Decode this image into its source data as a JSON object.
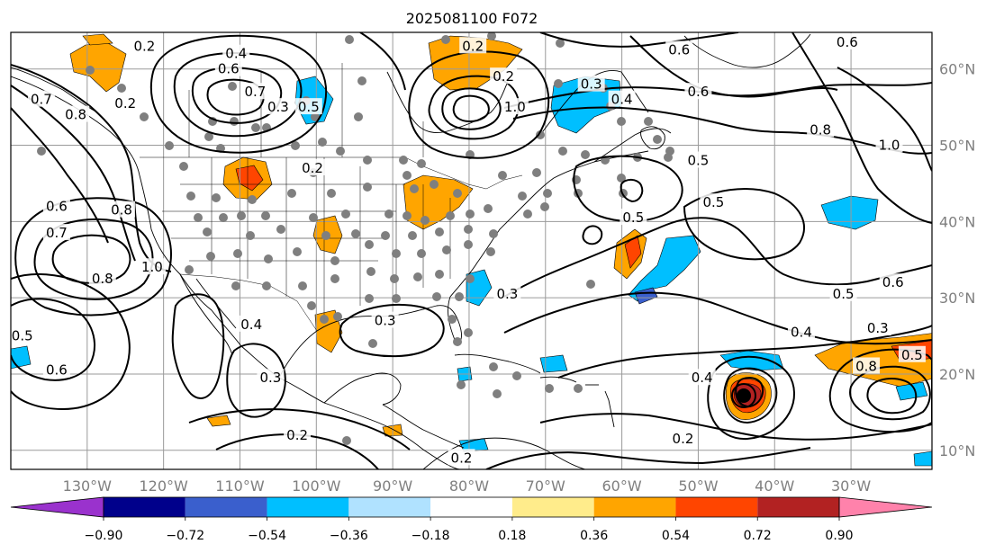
{
  "title": "2025081100 F072",
  "lon_labels": [
    "130°W",
    "120°W",
    "110°W",
    "100°W",
    "90°W",
    "80°W",
    "70°W",
    "60°W",
    "50°W",
    "40°W",
    "30°W"
  ],
  "lat_labels": [
    "60°N",
    "50°N",
    "40°N",
    "30°N",
    "20°N",
    "10°N"
  ],
  "colorbar": {
    "tick_labels": [
      "−0.90",
      "−0.72",
      "−0.54",
      "−0.36",
      "−0.18",
      "0.18",
      "0.36",
      "0.54",
      "0.72",
      "0.90"
    ],
    "colors": [
      "#9a32cd",
      "#00008b",
      "#3a5fcd",
      "#00bfff",
      "#b0e2ff",
      "#ffffff",
      "#ffec8b",
      "#ffa500",
      "#ff4500",
      "#b22222",
      "#ff82ab"
    ]
  },
  "contour_labels": [
    {
      "text": "0.2",
      "lon": -122.5,
      "lat": 63.0
    },
    {
      "text": "0.4",
      "lon": -110.5,
      "lat": 62.0
    },
    {
      "text": "0.6",
      "lon": -111.5,
      "lat": 60.0
    },
    {
      "text": "0.7",
      "lon": -108.0,
      "lat": 57.0
    },
    {
      "text": "0.3",
      "lon": -105.0,
      "lat": 55.0
    },
    {
      "text": "0.5",
      "lon": -101.0,
      "lat": 55.0
    },
    {
      "text": "0.7",
      "lon": -136.0,
      "lat": 56.0
    },
    {
      "text": "0.8",
      "lon": -131.5,
      "lat": 54.0
    },
    {
      "text": "0.2",
      "lon": -125.0,
      "lat": 55.5
    },
    {
      "text": "0.8",
      "lon": -125.5,
      "lat": 41.5
    },
    {
      "text": "0.6",
      "lon": -134.0,
      "lat": 42.0
    },
    {
      "text": "0.7",
      "lon": -134.0,
      "lat": 38.5
    },
    {
      "text": "0.8",
      "lon": -128.0,
      "lat": 32.5
    },
    {
      "text": "1.0",
      "lon": -121.5,
      "lat": 34.0
    },
    {
      "text": "0.2",
      "lon": -100.5,
      "lat": 47.0
    },
    {
      "text": "0.2",
      "lon": -79.5,
      "lat": 63.0
    },
    {
      "text": "0.2",
      "lon": -75.5,
      "lat": 59.0
    },
    {
      "text": "1.0",
      "lon": -74.0,
      "lat": 55.0
    },
    {
      "text": "0.3",
      "lon": -64.0,
      "lat": 58.0
    },
    {
      "text": "0.4",
      "lon": -60.0,
      "lat": 56.0
    },
    {
      "text": "0.6",
      "lon": -50.0,
      "lat": 57.0
    },
    {
      "text": "0.6",
      "lon": -52.5,
      "lat": 62.5
    },
    {
      "text": "0.6",
      "lon": -30.5,
      "lat": 63.5
    },
    {
      "text": "0.8",
      "lon": -34.0,
      "lat": 52.0
    },
    {
      "text": "1.0",
      "lon": -25.0,
      "lat": 50.0
    },
    {
      "text": "0.5",
      "lon": -50.0,
      "lat": 48.0
    },
    {
      "text": "0.5",
      "lon": -48.0,
      "lat": 42.5
    },
    {
      "text": "0.5",
      "lon": -58.5,
      "lat": 40.5
    },
    {
      "text": "0.5",
      "lon": -31.0,
      "lat": 30.5
    },
    {
      "text": "0.6",
      "lon": -24.5,
      "lat": 32.0
    },
    {
      "text": "0.3",
      "lon": -75.0,
      "lat": 30.5
    },
    {
      "text": "0.3",
      "lon": -91.0,
      "lat": 27.0
    },
    {
      "text": "0.4",
      "lon": -108.5,
      "lat": 26.5
    },
    {
      "text": "0.3",
      "lon": -106.0,
      "lat": 19.5
    },
    {
      "text": "0.5",
      "lon": -138.5,
      "lat": 25.0
    },
    {
      "text": "0.6",
      "lon": -134.0,
      "lat": 20.5
    },
    {
      "text": "0.2",
      "lon": -102.5,
      "lat": 12.0
    },
    {
      "text": "0.2",
      "lon": -81.0,
      "lat": 9.0
    },
    {
      "text": "0.4",
      "lon": -36.5,
      "lat": 25.5
    },
    {
      "text": "0.3",
      "lon": -26.5,
      "lat": 26.0
    },
    {
      "text": "0.5",
      "lon": -22.0,
      "lat": 22.5
    },
    {
      "text": "0.2",
      "lon": -52.0,
      "lat": 11.5
    },
    {
      "text": "0.4",
      "lon": -49.5,
      "lat": 19.5
    },
    {
      "text": "0.8",
      "lon": -28.0,
      "lat": 21.0
    }
  ]
}
